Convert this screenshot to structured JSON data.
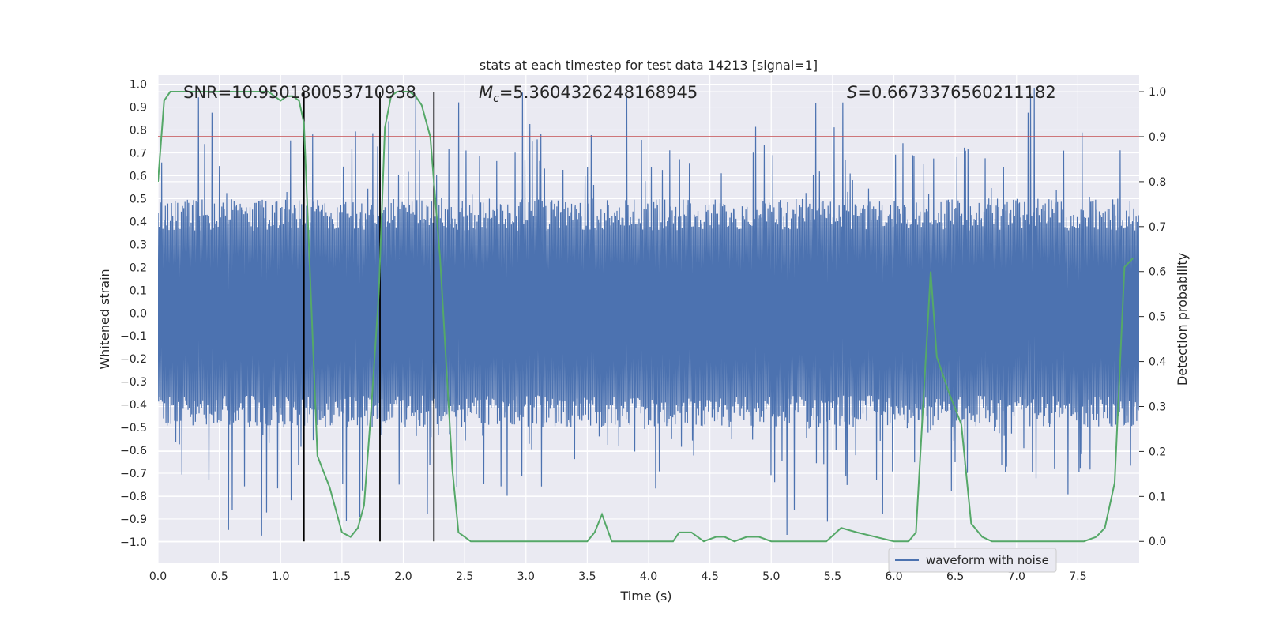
{
  "chart_data": {
    "type": "line",
    "title": "stats at each timestep for test data 14213 [signal=1]",
    "xlabel": "Time (s)",
    "ylabel_left": "Whitened strain",
    "ylabel_right": "Detection probability",
    "xlim": [
      0.0,
      8.0
    ],
    "ylim_left": [
      -1.09,
      1.04
    ],
    "ylim_right": [
      -0.047,
      1.037
    ],
    "x_ticks": [
      "0.0",
      "0.5",
      "1.0",
      "1.5",
      "2.0",
      "2.5",
      "3.0",
      "3.5",
      "4.0",
      "4.5",
      "5.0",
      "5.5",
      "6.0",
      "6.5",
      "7.0",
      "7.5"
    ],
    "y_left_ticks": [
      "1.0",
      "0.9",
      "0.8",
      "0.7",
      "0.6",
      "0.5",
      "0.4",
      "0.3",
      "0.2",
      "0.1",
      "0.0",
      "-0.1",
      "-0.2",
      "-0.3",
      "-0.4",
      "-0.5",
      "-0.6",
      "-0.7",
      "-0.8",
      "-0.9",
      "-1.0"
    ],
    "y_right_ticks": [
      "1.0",
      "0.9",
      "0.8",
      "0.7",
      "0.6",
      "0.5",
      "0.4",
      "0.3",
      "0.2",
      "0.1",
      "0.0"
    ],
    "grid": true,
    "legend_placement": "bottom-right",
    "annotations": {
      "snr": "SNR=10.950180053710938",
      "mc_symbol": "M",
      "mc_sub": "c",
      "mc_value": "=5.3604326248168945",
      "s_symbol": "S",
      "s_value": "=0.6673376560211182"
    },
    "threshold": {
      "axis": "right",
      "value": 0.9,
      "color": "#c44e52"
    },
    "vlines": [
      1.19,
      1.81,
      2.25
    ],
    "series": [
      {
        "name": "waveform with noise",
        "axis": "left",
        "color": "#4c72b0",
        "kind": "noise",
        "samples": 1600,
        "core_amplitude": 0.36,
        "typical_peak": 0.5,
        "max_abs": 1.0
      },
      {
        "name": "detection probability",
        "axis": "right",
        "color": "#55a868",
        "x": [
          0.0,
          0.05,
          0.1,
          0.2,
          0.3,
          0.5,
          0.7,
          0.9,
          0.95,
          1.0,
          1.05,
          1.1,
          1.15,
          1.19,
          1.3,
          1.4,
          1.5,
          1.57,
          1.63,
          1.68,
          1.74,
          1.8,
          1.85,
          1.9,
          1.95,
          2.05,
          2.1,
          2.15,
          2.22,
          2.3,
          2.4,
          2.45,
          2.55,
          2.7,
          2.9,
          3.2,
          3.5,
          3.56,
          3.62,
          3.7,
          3.85,
          4.2,
          4.25,
          4.35,
          4.45,
          4.55,
          4.62,
          4.7,
          4.8,
          4.9,
          5.0,
          5.2,
          5.45,
          5.57,
          5.7,
          5.85,
          6.0,
          6.12,
          6.18,
          6.3,
          6.35,
          6.45,
          6.55,
          6.63,
          6.72,
          6.8,
          7.0,
          7.2,
          7.55,
          7.65,
          7.72,
          7.8,
          7.88,
          7.95
        ],
        "y": [
          0.8,
          0.98,
          1.0,
          1.0,
          1.0,
          1.0,
          1.0,
          1.0,
          0.99,
          0.98,
          0.99,
          0.99,
          0.98,
          0.93,
          0.19,
          0.12,
          0.02,
          0.01,
          0.03,
          0.08,
          0.3,
          0.55,
          0.92,
          0.99,
          1.0,
          1.0,
          0.99,
          0.97,
          0.9,
          0.63,
          0.16,
          0.02,
          0.0,
          0.0,
          0.0,
          0.0,
          0.0,
          0.02,
          0.06,
          0.0,
          0.0,
          0.0,
          0.02,
          0.02,
          0.0,
          0.01,
          0.01,
          0.0,
          0.01,
          0.01,
          0.0,
          0.0,
          0.0,
          0.03,
          0.02,
          0.01,
          0.0,
          0.0,
          0.02,
          0.6,
          0.41,
          0.33,
          0.26,
          0.04,
          0.01,
          0.0,
          0.0,
          0.0,
          0.0,
          0.01,
          0.03,
          0.13,
          0.61,
          0.63
        ]
      }
    ]
  }
}
